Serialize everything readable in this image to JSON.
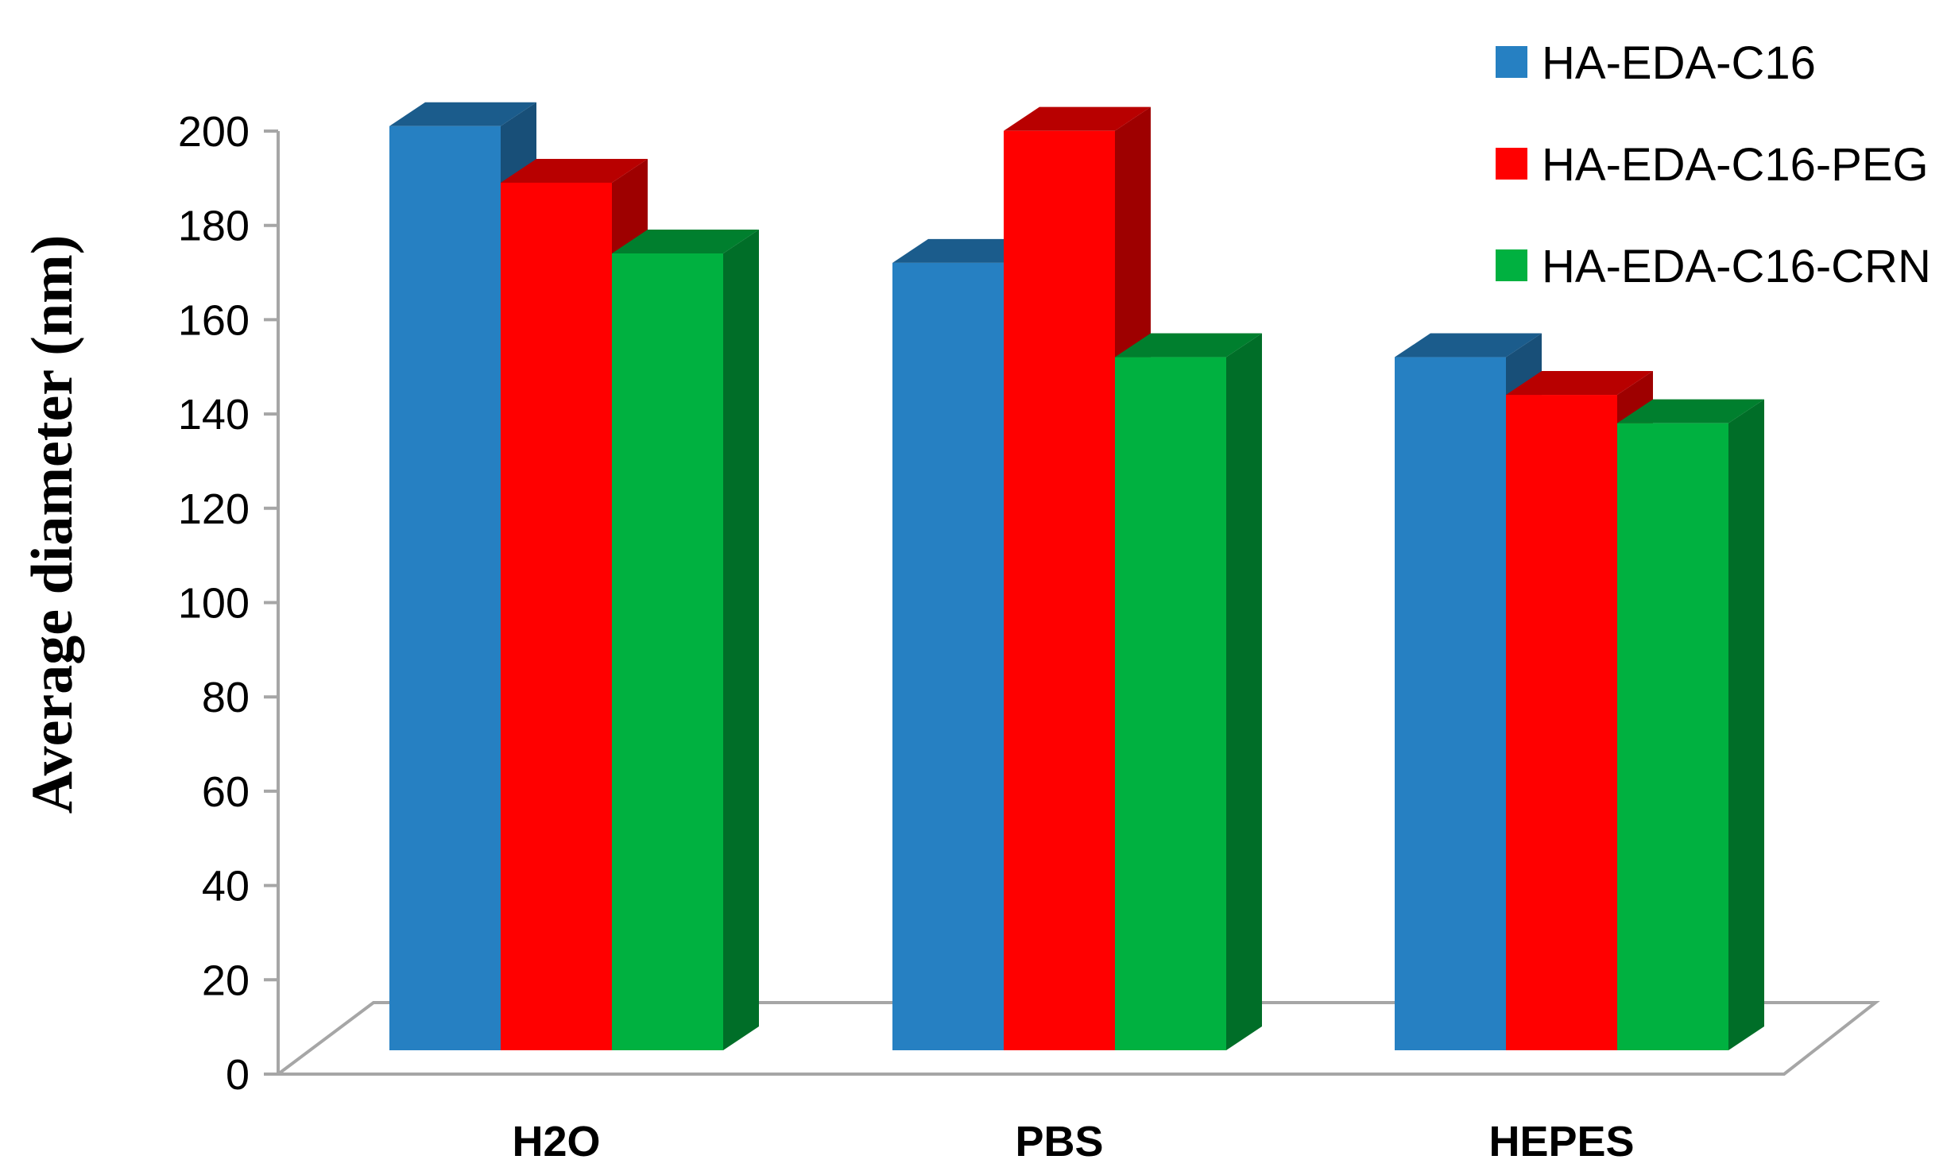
{
  "chart_data": {
    "type": "bar",
    "style": "3d-clustered",
    "title": "",
    "xlabel": "",
    "ylabel": "Average diameter (nm)",
    "ylim": [
      0,
      200
    ],
    "yticks": [
      0,
      20,
      40,
      60,
      80,
      100,
      120,
      140,
      160,
      180,
      200
    ],
    "categories": [
      "H2O",
      "PBS",
      "HEPES"
    ],
    "series": [
      {
        "name": "HA-EDA-C16",
        "color": "#2680C2",
        "values": [
          196,
          167,
          147
        ]
      },
      {
        "name": "HA-EDA-C16-PEG",
        "color": "#FF0000",
        "values": [
          184,
          195,
          139
        ]
      },
      {
        "name": "HA-EDA-C16-CRN",
        "color": "#00B140",
        "values": [
          169,
          147,
          133
        ]
      }
    ],
    "legend_position": "top-right",
    "grid": false
  }
}
